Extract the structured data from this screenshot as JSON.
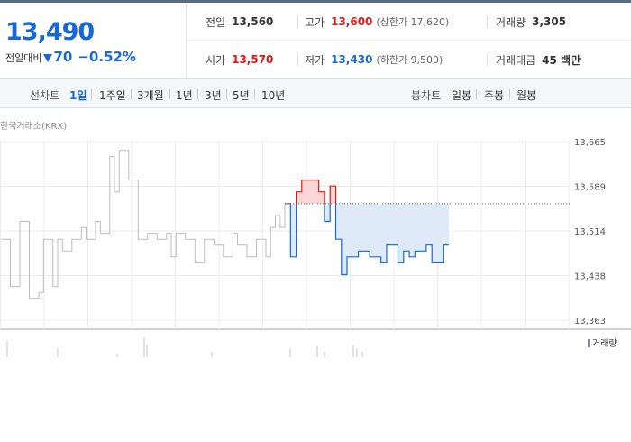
{
  "quote": {
    "price": "13,490",
    "change_label": "전일대비",
    "change_amount": "70",
    "change_percent": "−0.52%",
    "direction": "down"
  },
  "stats": {
    "prev_close": {
      "label": "전일",
      "value": "13,560"
    },
    "high": {
      "label": "고가",
      "value": "13,600",
      "sub": "(상한가 17,620)"
    },
    "volume": {
      "label": "거래량",
      "value": "3,305"
    },
    "open": {
      "label": "시가",
      "value": "13,570"
    },
    "low": {
      "label": "저가",
      "value": "13,430",
      "sub": "(하한가 9,500)"
    },
    "amount": {
      "label": "거래대금",
      "value": "45 백만"
    }
  },
  "toolbar": {
    "line_chart_label": "선차트",
    "periods": [
      "1일",
      "1주일",
      "3개월",
      "1년",
      "3년",
      "5년",
      "10년"
    ],
    "active_period": "1일",
    "candle_chart_label": "봉차트",
    "candles": [
      "일봉",
      "주봉",
      "월봉"
    ]
  },
  "source_label": "한국거래소(KRX)",
  "colors": {
    "up": "#e01818",
    "down": "#1768d6",
    "accent_blue": "#1768d6"
  },
  "chart_data": {
    "type": "line",
    "y_ticks": [
      "13,665",
      "13,589",
      "13,514",
      "13,438",
      "13,363"
    ],
    "ylim": [
      13363,
      13665
    ],
    "reference_line": 13560,
    "series": [
      {
        "name": "",
        "values": [
          13500,
          13500,
          13420,
          13420,
          13530,
          13530,
          13400,
          13400,
          13410,
          13500,
          13500,
          13420,
          13500,
          13480,
          13480,
          13500,
          13500,
          13520,
          13500,
          13500,
          13530,
          13510,
          13510,
          13640,
          13580,
          13650,
          13650,
          13600,
          13600,
          13500,
          13500,
          13510,
          13510,
          13500,
          13500,
          13510,
          13470,
          13510,
          13510,
          13500,
          13500,
          13460,
          13460,
          13500,
          13500,
          13490,
          13490,
          13470,
          13470,
          13510,
          13490,
          13490,
          13470,
          13470,
          13500,
          13500,
          13470,
          13520,
          13540,
          13520,
          13560
        ]
      },
      {
        "name": "",
        "values": [
          13560,
          13470,
          13580,
          13600,
          13600,
          13600,
          13580,
          13530,
          13590,
          13500,
          13440,
          13470,
          13470,
          13480,
          13480,
          13470,
          13470,
          13460,
          13490,
          13490,
          13460,
          13480,
          13470,
          13480,
          13480,
          13490,
          13460,
          13460,
          13490,
          13490
        ]
      }
    ],
    "volume_label": "거래량"
  }
}
